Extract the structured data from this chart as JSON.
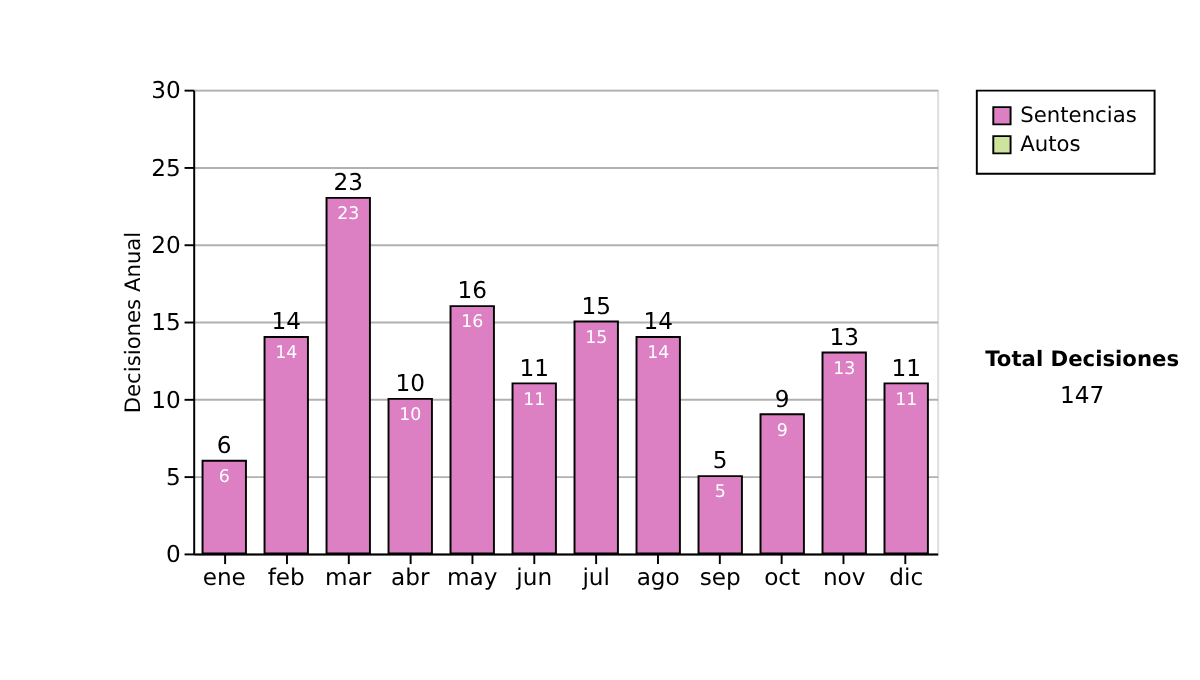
{
  "chart_data": {
    "type": "bar",
    "ylabel": "Decisiones Anual",
    "categories": [
      "ene",
      "feb",
      "mar",
      "abr",
      "may",
      "jun",
      "jul",
      "ago",
      "sep",
      "oct",
      "nov",
      "dic"
    ],
    "series": [
      {
        "name": "Sentencias",
        "color": "#dd7fc3",
        "values": [
          6,
          14,
          23,
          10,
          16,
          11,
          15,
          14,
          5,
          9,
          13,
          11
        ]
      },
      {
        "name": "Autos",
        "color": "#cde49c",
        "values": [
          null,
          null,
          null,
          null,
          null,
          null,
          null,
          null,
          null,
          null,
          null,
          null
        ]
      }
    ],
    "data_labels": true,
    "totals": [
      "6",
      "14",
      "23",
      "10",
      "16",
      "11",
      "15",
      "14",
      "5",
      "9",
      "13",
      "11"
    ],
    "ylim": [
      0,
      30
    ],
    "yticks": [
      0,
      5,
      10,
      15,
      20,
      25,
      30
    ],
    "grid": "y",
    "legend": "right",
    "annotations": [
      "Total Decisiones",
      "147"
    ]
  }
}
